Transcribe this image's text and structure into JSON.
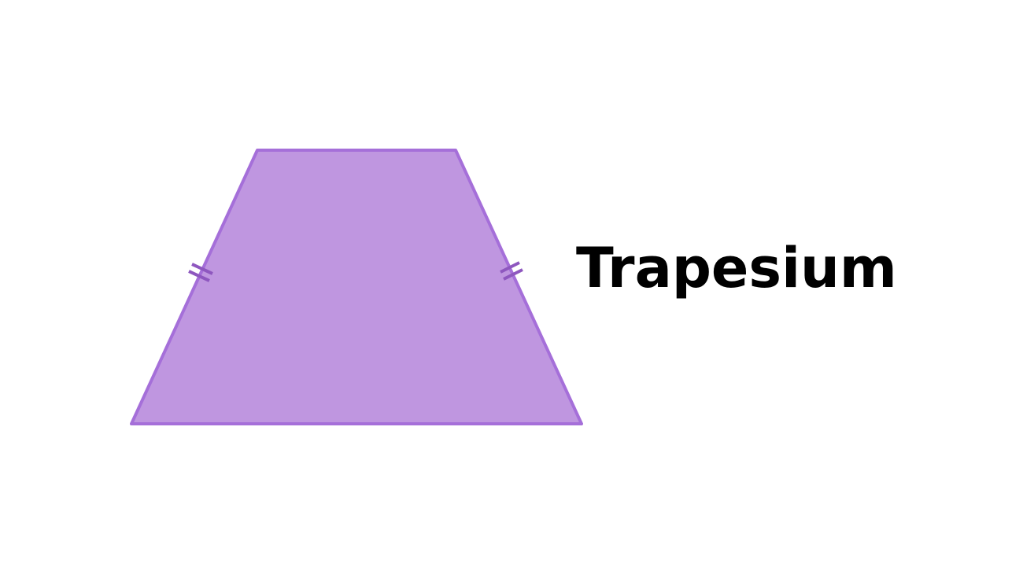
{
  "diagram": {
    "label": "Trapesium",
    "shape": "isosceles-trapezoid",
    "equal_sides_marked": true,
    "colors": {
      "fill": "#bf96e0",
      "stroke": "#a56fd9",
      "tick": "#8e57bf",
      "text": "#000000",
      "background": "#ffffff"
    }
  }
}
